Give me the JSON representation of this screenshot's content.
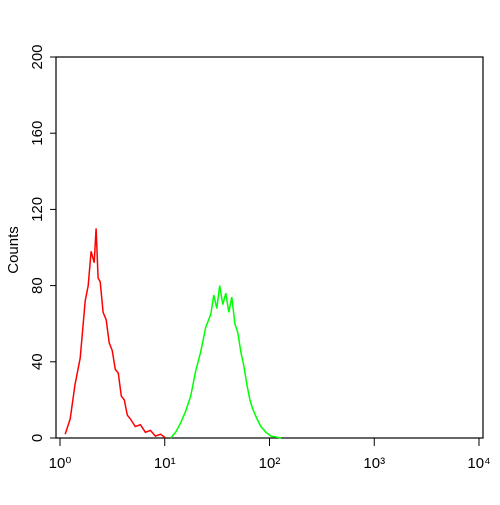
{
  "chart_data": {
    "type": "line",
    "ylabel": "Counts",
    "xscale": "log",
    "xlim": [
      1,
      10000
    ],
    "xticks": [
      {
        "value": 1,
        "label": "10⁰"
      },
      {
        "value": 10,
        "label": "10¹"
      },
      {
        "value": 100,
        "label": "10²"
      },
      {
        "value": 1000,
        "label": "10³"
      },
      {
        "value": 10000,
        "label": "10⁴"
      }
    ],
    "ylim": [
      0,
      200
    ],
    "yticks": [
      0,
      40,
      80,
      120,
      160,
      200
    ],
    "series": [
      {
        "color": "#ff0000",
        "x": [
          1.12,
          1.25,
          1.39,
          1.56,
          1.74,
          1.86,
          1.98,
          2.12,
          2.21,
          2.31,
          2.42,
          2.58,
          2.76,
          2.95,
          3.15,
          3.37,
          3.6,
          3.85,
          4.11,
          4.39,
          4.69,
          5.24,
          5.85,
          6.53,
          7.3,
          8.15,
          9.1,
          10.2
        ],
        "values": [
          2,
          10,
          28,
          42,
          72,
          80,
          98,
          92,
          110,
          84,
          82,
          66,
          62,
          50,
          46,
          36,
          34,
          22,
          20,
          12,
          10,
          6,
          7,
          3,
          4,
          1,
          2,
          0
        ]
      },
      {
        "color": "#00ff00",
        "x": [
          11.4,
          12.7,
          14.2,
          15.8,
          17.7,
          19.7,
          22.0,
          24.6,
          27.5,
          29.4,
          31.4,
          33.5,
          35.8,
          38.3,
          40.9,
          43.7,
          46.7,
          49.9,
          53.3,
          56.9,
          60.8,
          65.0,
          69.5,
          75.9,
          82.8,
          92.5,
          103,
          129
        ],
        "values": [
          0,
          3,
          8,
          14,
          22,
          35,
          45,
          58,
          65,
          75,
          68,
          80,
          70,
          76,
          66,
          74,
          60,
          55,
          45,
          38,
          28,
          20,
          15,
          10,
          6,
          3,
          1,
          0
        ]
      }
    ]
  }
}
